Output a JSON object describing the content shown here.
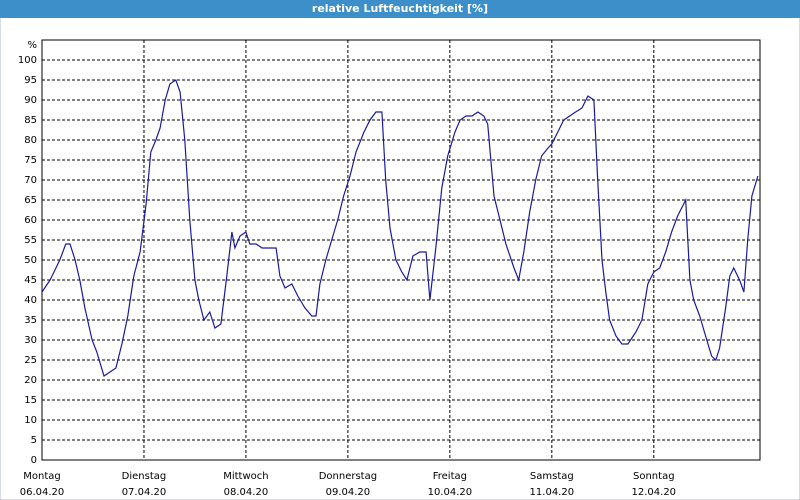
{
  "chart_data": {
    "type": "line",
    "title": "relative Luftfeuchtigkeit [%]",
    "y_label": "%",
    "xlim": [
      0,
      169
    ],
    "ylim": [
      0,
      105
    ],
    "yticks": [
      0,
      5,
      10,
      15,
      20,
      25,
      30,
      35,
      40,
      45,
      50,
      55,
      60,
      65,
      70,
      75,
      80,
      85,
      90,
      95,
      100
    ],
    "xticks": [
      {
        "value": 0,
        "label": "Montag",
        "date": "06.04.20"
      },
      {
        "value": 24,
        "label": "Dienstag",
        "date": "07.04.20"
      },
      {
        "value": 48,
        "label": "Mittwoch",
        "date": "08.04.20"
      },
      {
        "value": 72,
        "label": "Donnerstag",
        "date": "09.04.20"
      },
      {
        "value": 96,
        "label": "Freitag",
        "date": "10.04.20"
      },
      {
        "value": 120,
        "label": "Samstag",
        "date": "11.04.20"
      },
      {
        "value": 144,
        "label": "Sonntag",
        "date": "12.04.20"
      }
    ],
    "grid": true,
    "x": [
      0,
      1.9,
      4.2,
      5.6,
      6.6,
      7.8,
      8.9,
      10.1,
      11.8,
      12.9,
      14.6,
      16,
      17.4,
      18.8,
      20.2,
      21.6,
      23.1,
      24.5,
      25.6,
      26.8,
      27.8,
      29,
      30.1,
      31.5,
      32.5,
      33.6,
      34.8,
      36,
      36.9,
      38.1,
      39.5,
      40.7,
      42.1,
      43.5,
      44.7,
      45.4,
      46.6,
      48,
      48.9,
      50.4,
      51.8,
      53.6,
      55.1,
      56,
      57.2,
      58.8,
      60.2,
      61.9,
      63.5,
      64.5,
      65.4,
      66.8,
      68.2,
      69.6,
      71,
      72.5,
      73.9,
      75.8,
      77.2,
      78.6,
      80,
      80.9,
      81.9,
      83.3,
      84.7,
      85.9,
      87.3,
      88.9,
      90.4,
      91.3,
      92.7,
      94.1,
      95.5,
      97.2,
      98.4,
      99.8,
      101.2,
      102.6,
      104,
      104.9,
      106.4,
      107.8,
      109.2,
      111.1,
      112.2,
      113.4,
      114.8,
      116.2,
      117.6,
      119.1,
      120,
      121.4,
      122.8,
      124.2,
      125.6,
      127.1,
      128.5,
      129.9,
      130.8,
      131.8,
      132.7,
      133.6,
      135.1,
      136.5,
      137.9,
      139.8,
      141.2,
      142.6,
      144,
      145.4,
      146.8,
      148.2,
      149.6,
      151.5,
      152.5,
      153.4,
      154.8,
      156.2,
      157.6,
      158.6,
      159.5,
      160.9,
      161.9,
      162.8,
      164.2,
      165.2,
      166.1,
      167.1,
      168.5
    ],
    "series": [
      {
        "name": "relative Luftfeuchtigkeit",
        "color": "#1a1a9e",
        "values": [
          42,
          45,
          50,
          54,
          54,
          50,
          45,
          38,
          30,
          27,
          21,
          22,
          23,
          29,
          36,
          46,
          52,
          64,
          77,
          80,
          83,
          90,
          94,
          95,
          92,
          80,
          60,
          45,
          40,
          35,
          37,
          33,
          34,
          46,
          57,
          53,
          56,
          57,
          54,
          54,
          53,
          53,
          53,
          46,
          43,
          44,
          41,
          38,
          36,
          36,
          44,
          50,
          55,
          60,
          66,
          71,
          77,
          82,
          85,
          87,
          87,
          70,
          58,
          50,
          47,
          45,
          51,
          52,
          52,
          40,
          53,
          68,
          76,
          82,
          85,
          86,
          86,
          87,
          86,
          84,
          66,
          60,
          54,
          48,
          45,
          52,
          62,
          70,
          76,
          78,
          79,
          82,
          85,
          86,
          87,
          88,
          91,
          90,
          70,
          50,
          42,
          35,
          31,
          29,
          29,
          32,
          35,
          44,
          47,
          48,
          52,
          57,
          61,
          65,
          45,
          40,
          36,
          31,
          26,
          25,
          28,
          38,
          46,
          48,
          45,
          42,
          55,
          66,
          71
        ]
      }
    ]
  }
}
